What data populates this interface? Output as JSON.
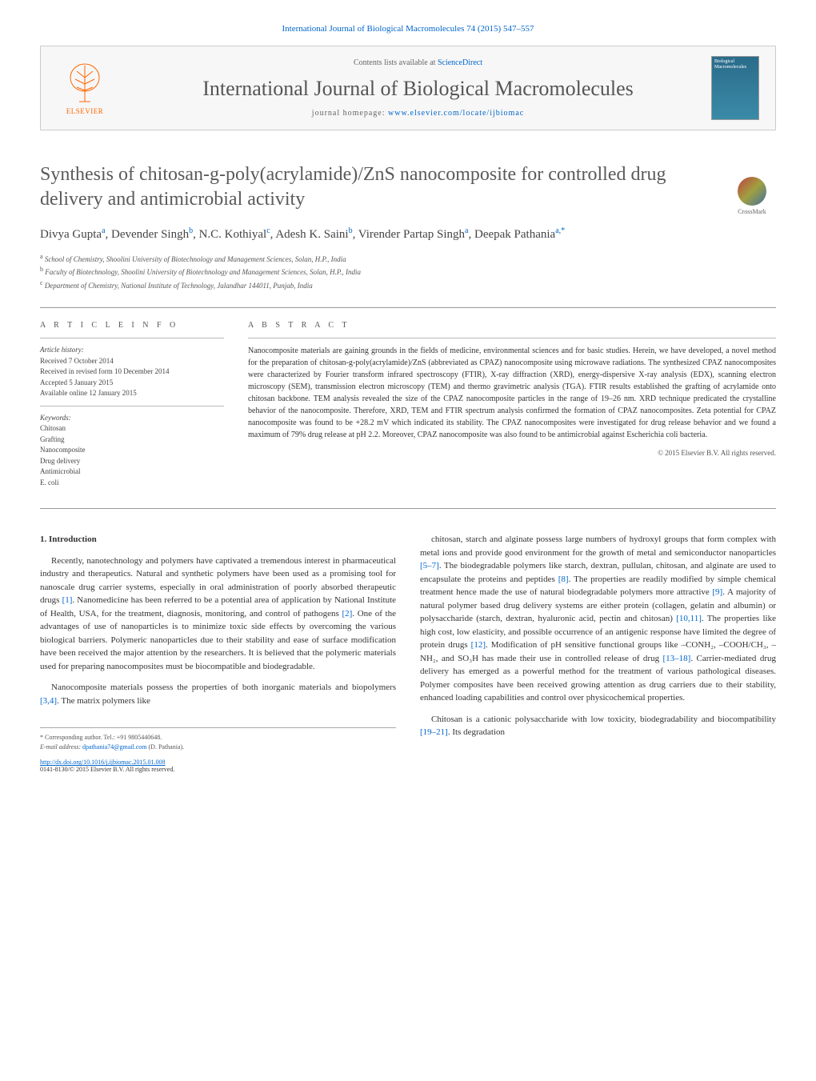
{
  "top_citation": "International Journal of Biological Macromolecules 74 (2015) 547–557",
  "header": {
    "contents_text": "Contents lists available at ",
    "contents_link": "ScienceDirect",
    "journal_name": "International Journal of Biological Macromolecules",
    "homepage_label": "journal homepage: ",
    "homepage_url": "www.elsevier.com/locate/ijbiomac",
    "publisher_logo_label": "ELSEVIER",
    "cover_text": "Biological Macromolecules"
  },
  "crossmark_label": "CrossMark",
  "article": {
    "title": "Synthesis of chitosan-g-poly(acrylamide)/ZnS nanocomposite for controlled drug delivery and antimicrobial activity",
    "authors_html": "Divya Gupta<sup>a</sup>, Devender Singh<sup>b</sup>, N.C. Kothiyal<sup>c</sup>, Adesh K. Saini<sup>b</sup>, Virender Partap Singh<sup>a</sup>, Deepak Pathania<sup>a,*</sup>",
    "affiliations": [
      {
        "sup": "a",
        "text": "School of Chemistry, Shoolini University of Biotechnology and Management Sciences, Solan, H.P., India"
      },
      {
        "sup": "b",
        "text": "Faculty of Biotechnology, Shoolini University of Biotechnology and Management Sciences, Solan, H.P., India"
      },
      {
        "sup": "c",
        "text": "Department of Chemistry, National Institute of Technology, Jalandhar 144011, Punjab, India"
      }
    ]
  },
  "article_info": {
    "heading": "a r t i c l e   i n f o",
    "history_label": "Article history:",
    "history": [
      "Received 7 October 2014",
      "Received in revised form 10 December 2014",
      "Accepted 5 January 2015",
      "Available online 12 January 2015"
    ],
    "keywords_label": "Keywords:",
    "keywords": [
      "Chitosan",
      "Grafting",
      "Nanocomposite",
      "Drug delivery",
      "Antimicrobial",
      "E. coli"
    ]
  },
  "abstract": {
    "heading": "a b s t r a c t",
    "text": "Nanocomposite materials are gaining grounds in the fields of medicine, environmental sciences and for basic studies. Herein, we have developed, a novel method for the preparation of chitosan-g-poly(acrylamide)/ZnS (abbreviated as CPAZ) nanocomposite using microwave radiations. The synthesized CPAZ nanocomposites were characterized by Fourier transform infrared spectroscopy (FTIR), X-ray diffraction (XRD), energy-dispersive X-ray analysis (EDX), scanning electron microscopy (SEM), transmission electron microscopy (TEM) and thermo gravimetric analysis (TGA). FTIR results established the grafting of acrylamide onto chitosan backbone. TEM analysis revealed the size of the CPAZ nanocomposite particles in the range of 19–26 nm. XRD technique predicated the crystalline behavior of the nanocomposite. Therefore, XRD, TEM and FTIR spectrum analysis confirmed the formation of CPAZ nanocomposites. Zeta potential for CPAZ nanocomposite was found to be +28.2 mV which indicated its stability. The CPAZ nanocomposites were investigated for drug release behavior and we found a maximum of 79% drug release at pH 2.2. Moreover, CPAZ nanocomposite was also found to be antimicrobial against Escherichia coli bacteria.",
    "copyright": "© 2015 Elsevier B.V. All rights reserved."
  },
  "body": {
    "section_number": "1.",
    "section_title": "Introduction",
    "col1_p1": "Recently, nanotechnology and polymers have captivated a tremendous interest in pharmaceutical industry and therapeutics. Natural and synthetic polymers have been used as a promising tool for nanoscale drug carrier systems, especially in oral administration of poorly absorbed therapeutic drugs [1]. Nanomedicine has been referred to be a potential area of application by National Institute of Health, USA, for the treatment, diagnosis, monitoring, and control of pathogens [2]. One of the advantages of use of nanoparticles is to minimize toxic side effects by overcoming the various biological barriers. Polymeric nanoparticles due to their stability and ease of surface modification have been received the major attention by the researchers. It is believed that the polymeric materials used for preparing nanocomposites must be biocompatible and biodegradable.",
    "col1_p2": "Nanocomposite materials possess the properties of both inorganic materials and biopolymers [3,4]. The matrix polymers like",
    "col2_p1": "chitosan, starch and alginate possess large numbers of hydroxyl groups that form complex with metal ions and provide good environment for the growth of metal and semiconductor nanoparticles [5–7]. The biodegradable polymers like starch, dextran, pullulan, chitosan, and alginate are used to encapsulate the proteins and peptides [8]. The properties are readily modified by simple chemical treatment hence made the use of natural biodegradable polymers more attractive [9]. A majority of natural polymer based drug delivery systems are either protein (collagen, gelatin and albumin) or polysaccharide (starch, dextran, hyaluronic acid, pectin and chitosan) [10,11]. The properties like high cost, low elasticity, and possible occurrence of an antigenic response have limited the degree of protein drugs [12]. Modification of pH sensitive functional groups like –CONH₂, –COOH/CH₃, –NH₂, and SO₃H has made their use in controlled release of drug [13–18]. Carrier-mediated drug delivery has emerged as a powerful method for the treatment of various pathological diseases. Polymer composites have been received growing attention as drug carriers due to their stability, enhanced loading capabilities and control over physicochemical properties.",
    "col2_p2": "Chitosan is a cationic polysaccharide with low toxicity, biodegradability and biocompatibility [19–21]. Its degradation",
    "refs": {
      "r1": "[1]",
      "r2": "[2]",
      "r34": "[3,4]",
      "r57": "[5–7]",
      "r8": "[8]",
      "r9": "[9]",
      "r1011": "[10,11]",
      "r12": "[12]",
      "r1318": "[13–18]",
      "r1921": "[19–21]"
    }
  },
  "footer": {
    "corresponding_label": "* Corresponding author. Tel.: +91 9805440648.",
    "email_label": "E-mail address: ",
    "email": "dpathania74@gmail.com",
    "email_name": " (D. Pathania).",
    "doi_url": "http://dx.doi.org/10.1016/j.ijbiomac.2015.01.008",
    "issn_line": "0141-8130/© 2015 Elsevier B.V. All rights reserved."
  },
  "colors": {
    "link": "#0066cc",
    "text": "#333333",
    "heading": "#5a5a5a",
    "elsevier_orange": "#ff6600"
  }
}
